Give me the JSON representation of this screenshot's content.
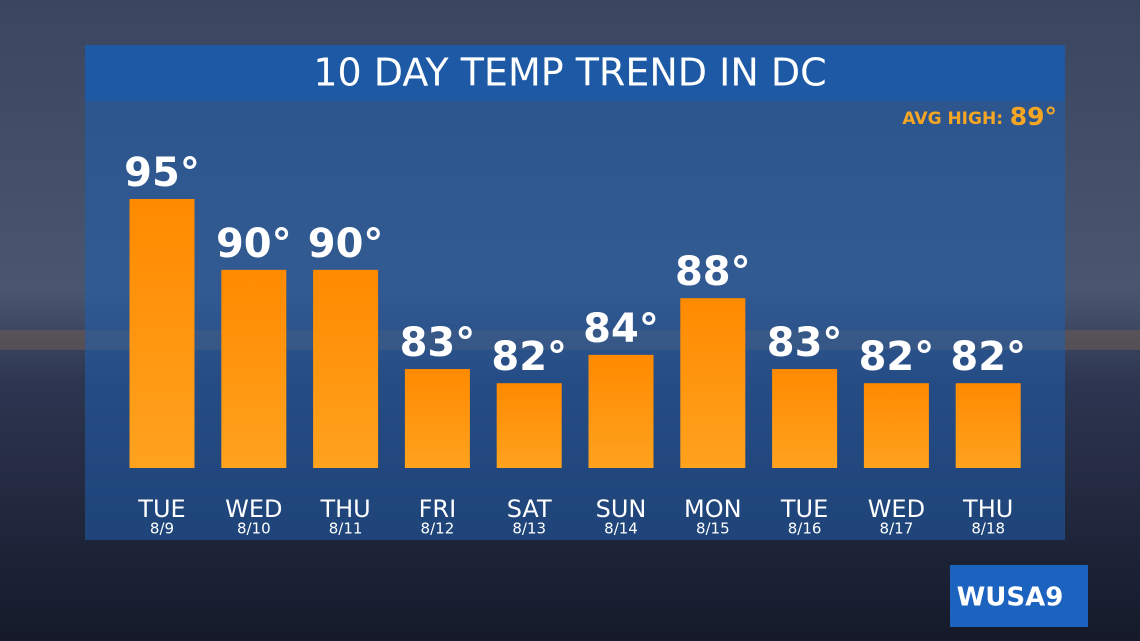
{
  "chart_data": {
    "type": "bar",
    "title": "10 DAY TEMP TREND IN DC",
    "annotations": [
      "AVG HIGH:",
      "89°"
    ],
    "categories": [
      "TUE",
      "WED",
      "THU",
      "FRI",
      "SAT",
      "SUN",
      "MON",
      "TUE",
      "WED",
      "THU"
    ],
    "dates": [
      "8/9",
      "8/10",
      "8/11",
      "8/12",
      "8/13",
      "8/14",
      "8/15",
      "8/16",
      "8/17",
      "8/18"
    ],
    "values": [
      95,
      90,
      90,
      83,
      82,
      84,
      88,
      83,
      82,
      82
    ],
    "value_labels": [
      "95°",
      "90°",
      "90°",
      "83°",
      "82°",
      "84°",
      "88°",
      "83°",
      "82°",
      "82°"
    ],
    "color": "#ff8c0a"
  },
  "logo": "WUSA9"
}
